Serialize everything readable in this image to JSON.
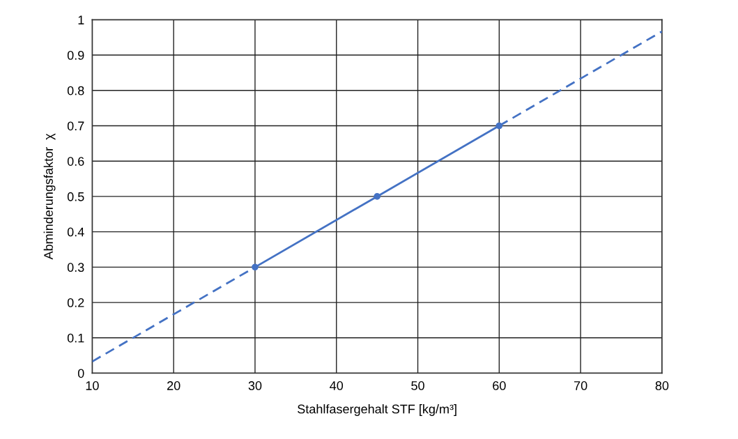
{
  "chart_data": {
    "type": "line",
    "xlabel": "Stahlfasergehalt STF [kg/m³]",
    "ylabel": "Abminderungsfaktor  χ",
    "xlim": [
      10,
      80
    ],
    "xticks": [
      10,
      20,
      30,
      40,
      50,
      60,
      70,
      80
    ],
    "ylim": [
      0,
      1
    ],
    "yticks": [
      0,
      0.1,
      0.2,
      0.3,
      0.4,
      0.5,
      0.6,
      0.7,
      0.8,
      0.9,
      1
    ],
    "grid": true,
    "legend": false,
    "series": [
      {
        "x": [
          30,
          45,
          60
        ],
        "values": [
          0.3,
          0.5,
          0.7
        ],
        "color": "#4472c4",
        "line_style": "solid",
        "marker": "circle"
      },
      {
        "x": [
          10,
          30
        ],
        "values": [
          0.033,
          0.3
        ],
        "color": "#4472c4",
        "line_style": "dashed"
      },
      {
        "x": [
          60,
          80
        ],
        "values": [
          0.7,
          0.967
        ],
        "color": "#4472c4",
        "line_style": "dashed"
      }
    ]
  }
}
